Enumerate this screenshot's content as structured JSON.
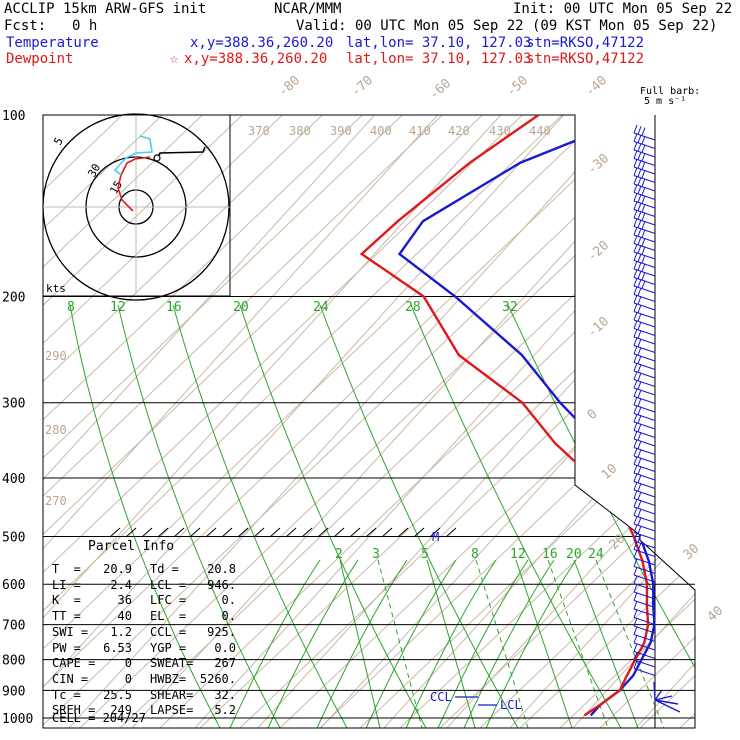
{
  "header": {
    "model": "ACCLIP 15km ARW-GFS init",
    "center": "NCAR/MMM",
    "init": "Init: 00 UTC Mon 05 Sep 22",
    "fcst_label": "Fcst:",
    "fcst_value": "0 h",
    "valid": "Valid: 00 UTC Mon 05 Sep 22 (09 KST Mon 05 Sep 22)"
  },
  "legend": {
    "temperature": {
      "label": "Temperature",
      "xy": "x,y=388.36,260.20",
      "latlon": "lat,lon= 37.10, 127.03",
      "stn": "stn=RKSO,47122",
      "color": "#1a1ad2"
    },
    "dewpoint": {
      "label": "Dewpoint",
      "marker": "☆",
      "xy": "x,y=388.36,260.20",
      "latlon": "lat,lon= 37.10, 127.03",
      "stn": "stn=RKSO,47122",
      "color": "#e01818"
    }
  },
  "barb_header": {
    "line1": "Full barb:",
    "line2": "5 m s⁻¹"
  },
  "hodograph": {
    "unit_label": "kts",
    "ring_labels": [
      "5",
      "30",
      "15"
    ]
  },
  "chart_data": {
    "type": "skew-t",
    "y_axis": "pressure (hPa)",
    "pressure_ticks": [
      100,
      200,
      300,
      400,
      500,
      600,
      700,
      800,
      900,
      1000
    ],
    "isotherm_labels": [
      "-80",
      "-70",
      "-60",
      "-50",
      "-40",
      "-30",
      "-20",
      "-10",
      "0",
      "10",
      "20",
      "30",
      "40"
    ],
    "theta_labels": [
      "370",
      "380",
      "390",
      "400",
      "410",
      "420",
      "430",
      "440",
      "290",
      "280",
      "270"
    ],
    "mixing_ratio_upper": [
      "8",
      "12",
      "16",
      "20",
      "24",
      "28",
      "32"
    ],
    "mixing_ratio_lower": [
      "2",
      "3",
      "5",
      "8",
      "12",
      "16",
      "20",
      "24"
    ],
    "series": [
      {
        "name": "Temperature",
        "color": "#1a1ad2",
        "points": [
          [
            100,
            -58
          ],
          [
            120,
            -70
          ],
          [
            150,
            -77
          ],
          [
            170,
            -76
          ],
          [
            200,
            -61
          ],
          [
            250,
            -42
          ],
          [
            300,
            -29
          ],
          [
            350,
            -17
          ],
          [
            400,
            -8
          ],
          [
            450,
            -1
          ],
          [
            500,
            3
          ],
          [
            550,
            8
          ],
          [
            600,
            12
          ],
          [
            650,
            15
          ],
          [
            700,
            18
          ],
          [
            750,
            20
          ],
          [
            800,
            21
          ],
          [
            850,
            22
          ],
          [
            900,
            22
          ],
          [
            950,
            21
          ],
          [
            990,
            21
          ]
        ]
      },
      {
        "name": "Dewpoint",
        "color": "#e01818",
        "points": [
          [
            100,
            -74
          ],
          [
            120,
            -78
          ],
          [
            150,
            -81
          ],
          [
            170,
            -82
          ],
          [
            200,
            -66
          ],
          [
            250,
            -52
          ],
          [
            300,
            -35
          ],
          [
            350,
            -24
          ],
          [
            400,
            -13
          ],
          [
            450,
            -4
          ],
          [
            500,
            2
          ],
          [
            550,
            7
          ],
          [
            600,
            11
          ],
          [
            650,
            14
          ],
          [
            700,
            17
          ],
          [
            750,
            19
          ],
          [
            800,
            20
          ],
          [
            850,
            21
          ],
          [
            900,
            22
          ],
          [
            950,
            21
          ],
          [
            990,
            20
          ]
        ]
      }
    ],
    "markers": [
      "CCL",
      "LCL",
      "M"
    ]
  },
  "parcel_info": {
    "title": "Parcel Info",
    "rows": [
      [
        "T  =",
        "20.9",
        "Td =",
        "20.8"
      ],
      [
        "LI =",
        "2.4",
        "LCL =",
        "946."
      ],
      [
        "K  =",
        "36",
        "LFC =",
        "0."
      ],
      [
        "TT =",
        "40",
        "EL  =",
        "0."
      ],
      [
        "SWI =",
        "1.2",
        "CCL =",
        "925."
      ],
      [
        "PW =",
        "6.53",
        "YGP =",
        "0.0"
      ],
      [
        "CAPE =",
        "0",
        "SWEAT=",
        "267"
      ],
      [
        "CIN =",
        "0",
        "HWBZ=",
        "5260."
      ],
      [
        "Tc =",
        "25.5",
        "SHEAR=",
        "32."
      ],
      [
        "SREH =",
        "249",
        "LAPSE=",
        "5.2"
      ]
    ],
    "cell": "CELL = 204/27"
  }
}
